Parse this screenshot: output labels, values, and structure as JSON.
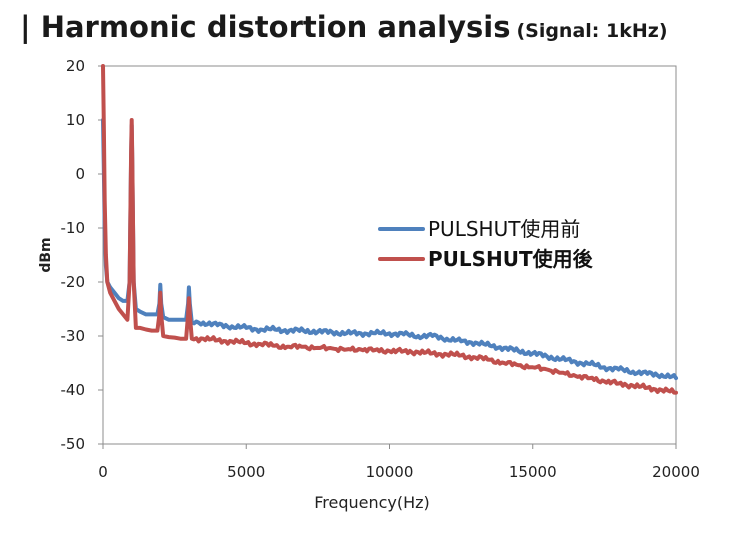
{
  "chart_data": {
    "type": "line",
    "title": "| Harmonic distortion analysis",
    "subtitle": "(Signal: 1kHz)",
    "xlabel": "Frequency(Hz)",
    "ylabel": "dBm",
    "xlim": [
      0,
      20000
    ],
    "ylim": [
      -50,
      20
    ],
    "xticks": [
      "0",
      "5000",
      "10000",
      "15000",
      "20000"
    ],
    "yticks": [
      "20",
      "10",
      "0",
      "-10",
      "-20",
      "-30",
      "-40",
      "-50"
    ],
    "grid": false,
    "legend_position": "center-right",
    "series": [
      {
        "name": "PULSHUT使用前",
        "color": "#4F81BD",
        "legend_bold": false,
        "points": [
          [
            0,
            10
          ],
          [
            30,
            0
          ],
          [
            60,
            -10
          ],
          [
            100,
            -17
          ],
          [
            150,
            -20
          ],
          [
            250,
            -21
          ],
          [
            400,
            -22
          ],
          [
            550,
            -23
          ],
          [
            700,
            -23.5
          ],
          [
            850,
            -23.5
          ],
          [
            930,
            -20
          ],
          [
            980,
            3
          ],
          [
            1000,
            9
          ],
          [
            1020,
            3
          ],
          [
            1070,
            -20
          ],
          [
            1150,
            -25
          ],
          [
            1300,
            -25.5
          ],
          [
            1500,
            -26
          ],
          [
            1700,
            -26
          ],
          [
            1900,
            -26
          ],
          [
            1970,
            -24
          ],
          [
            2000,
            -20.5
          ],
          [
            2030,
            -24
          ],
          [
            2100,
            -26.5
          ],
          [
            2300,
            -27
          ],
          [
            2500,
            -27
          ],
          [
            2700,
            -27
          ],
          [
            2900,
            -27
          ],
          [
            2970,
            -24
          ],
          [
            3000,
            -21
          ],
          [
            3030,
            -24
          ],
          [
            3100,
            -27.5
          ],
          [
            3500,
            -27.5
          ],
          [
            4000,
            -28
          ],
          [
            4500,
            -28.2
          ],
          [
            5000,
            -28.5
          ],
          [
            5500,
            -28.8
          ],
          [
            6000,
            -28.8
          ],
          [
            6500,
            -29
          ],
          [
            7000,
            -29
          ],
          [
            7500,
            -29.2
          ],
          [
            8000,
            -29.3
          ],
          [
            8500,
            -29.5
          ],
          [
            9000,
            -29.5
          ],
          [
            9500,
            -29.5
          ],
          [
            10000,
            -29.5
          ],
          [
            10500,
            -29.7
          ],
          [
            11000,
            -30
          ],
          [
            11500,
            -30
          ],
          [
            12000,
            -30.5
          ],
          [
            12500,
            -31
          ],
          [
            13000,
            -31.2
          ],
          [
            13500,
            -31.8
          ],
          [
            14000,
            -32.2
          ],
          [
            14500,
            -32.8
          ],
          [
            15000,
            -33.2
          ],
          [
            15500,
            -33.8
          ],
          [
            16000,
            -34.3
          ],
          [
            16500,
            -34.8
          ],
          [
            17000,
            -35.2
          ],
          [
            17500,
            -35.8
          ],
          [
            18000,
            -36.2
          ],
          [
            18500,
            -36.6
          ],
          [
            19000,
            -37
          ],
          [
            19500,
            -37.2
          ],
          [
            20000,
            -37.8
          ]
        ]
      },
      {
        "name": "PULSHUT使用後",
        "color": "#C0504D",
        "legend_bold": true,
        "points": [
          [
            0,
            20
          ],
          [
            30,
            8
          ],
          [
            60,
            -5
          ],
          [
            100,
            -15
          ],
          [
            150,
            -20
          ],
          [
            250,
            -22
          ],
          [
            400,
            -23.5
          ],
          [
            550,
            -25
          ],
          [
            700,
            -26
          ],
          [
            850,
            -27
          ],
          [
            930,
            -20
          ],
          [
            980,
            4
          ],
          [
            1000,
            10
          ],
          [
            1020,
            4
          ],
          [
            1070,
            -20
          ],
          [
            1150,
            -28.5
          ],
          [
            1300,
            -28.5
          ],
          [
            1500,
            -28.8
          ],
          [
            1700,
            -29
          ],
          [
            1900,
            -29
          ],
          [
            1970,
            -26
          ],
          [
            2000,
            -22
          ],
          [
            2030,
            -26
          ],
          [
            2100,
            -30
          ],
          [
            2300,
            -30.2
          ],
          [
            2500,
            -30.3
          ],
          [
            2700,
            -30.5
          ],
          [
            2900,
            -30.5
          ],
          [
            2970,
            -26
          ],
          [
            3000,
            -23
          ],
          [
            3030,
            -26
          ],
          [
            3100,
            -30.5
          ],
          [
            3500,
            -30.5
          ],
          [
            4000,
            -30.8
          ],
          [
            4500,
            -31
          ],
          [
            5000,
            -31.3
          ],
          [
            5500,
            -31.5
          ],
          [
            6000,
            -31.8
          ],
          [
            6500,
            -32
          ],
          [
            7000,
            -32
          ],
          [
            7500,
            -32.2
          ],
          [
            8000,
            -32.3
          ],
          [
            8500,
            -32.5
          ],
          [
            9000,
            -32.5
          ],
          [
            9500,
            -32.6
          ],
          [
            10000,
            -32.8
          ],
          [
            10500,
            -32.8
          ],
          [
            11000,
            -33
          ],
          [
            11500,
            -33.2
          ],
          [
            12000,
            -33.4
          ],
          [
            12500,
            -33.6
          ],
          [
            13000,
            -34
          ],
          [
            13500,
            -34.4
          ],
          [
            14000,
            -35
          ],
          [
            14500,
            -35.4
          ],
          [
            15000,
            -35.8
          ],
          [
            15500,
            -36.2
          ],
          [
            16000,
            -36.8
          ],
          [
            16500,
            -37.4
          ],
          [
            17000,
            -37.8
          ],
          [
            17500,
            -38.4
          ],
          [
            18000,
            -38.8
          ],
          [
            18500,
            -39.2
          ],
          [
            19000,
            -39.6
          ],
          [
            19500,
            -40
          ],
          [
            20000,
            -40.5
          ]
        ]
      }
    ]
  }
}
